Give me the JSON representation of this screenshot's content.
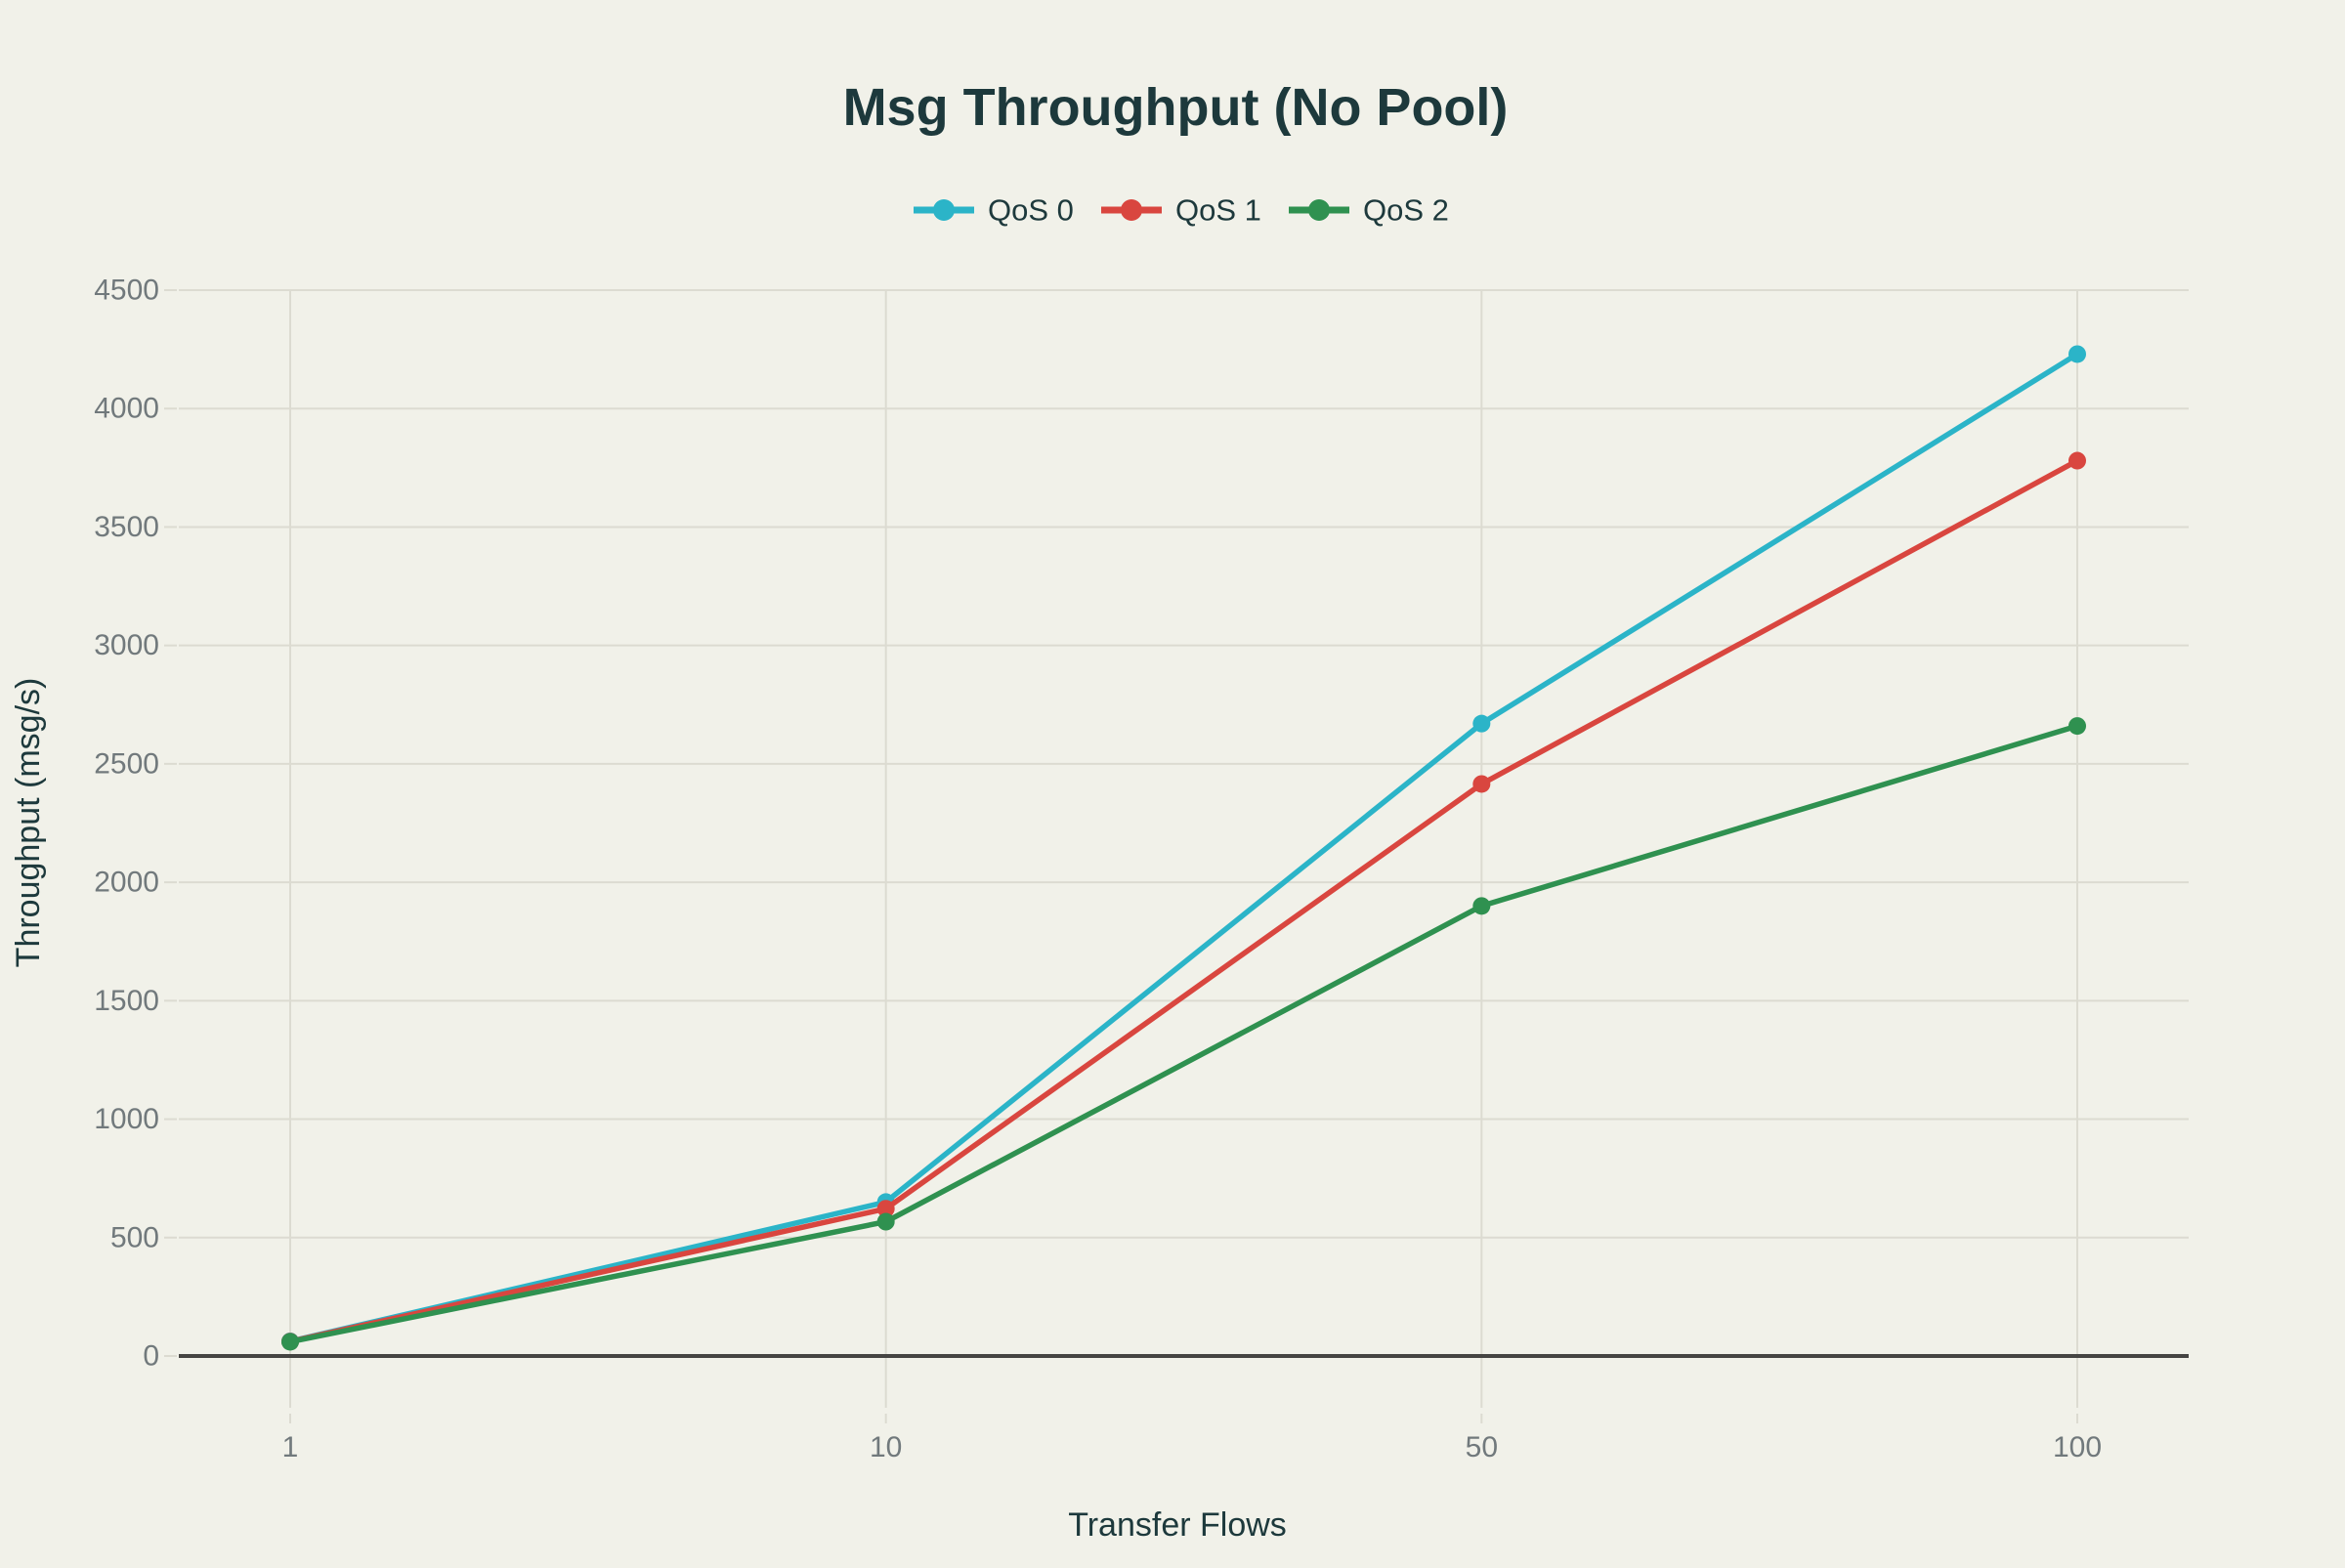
{
  "chart_data": {
    "type": "line",
    "title": "Msg Throughput (No Pool)",
    "xlabel": "Transfer Flows",
    "ylabel": "Throughput (msg/s)",
    "categories": [
      "1",
      "10",
      "50",
      "100"
    ],
    "series": [
      {
        "name": "QoS 0",
        "color": "#2bb4c8",
        "values": [
          62,
          650,
          2670,
          4230
        ]
      },
      {
        "name": "QoS 1",
        "color": "#d9463f",
        "values": [
          61,
          622,
          2415,
          3780
        ]
      },
      {
        "name": "QoS 2",
        "color": "#2f9150",
        "values": [
          60,
          567,
          1900,
          2660
        ]
      }
    ],
    "ylim": [
      0,
      4500
    ],
    "ytick_step": 500,
    "grid": true,
    "legend_position": "top",
    "colors": {
      "background": "#f1f1e9",
      "title_text": "#1d393c",
      "axis_title_text": "#1d393c",
      "tick_text": "#71797c",
      "grid": "#dcdbd1",
      "axis_line": "#454442"
    }
  }
}
